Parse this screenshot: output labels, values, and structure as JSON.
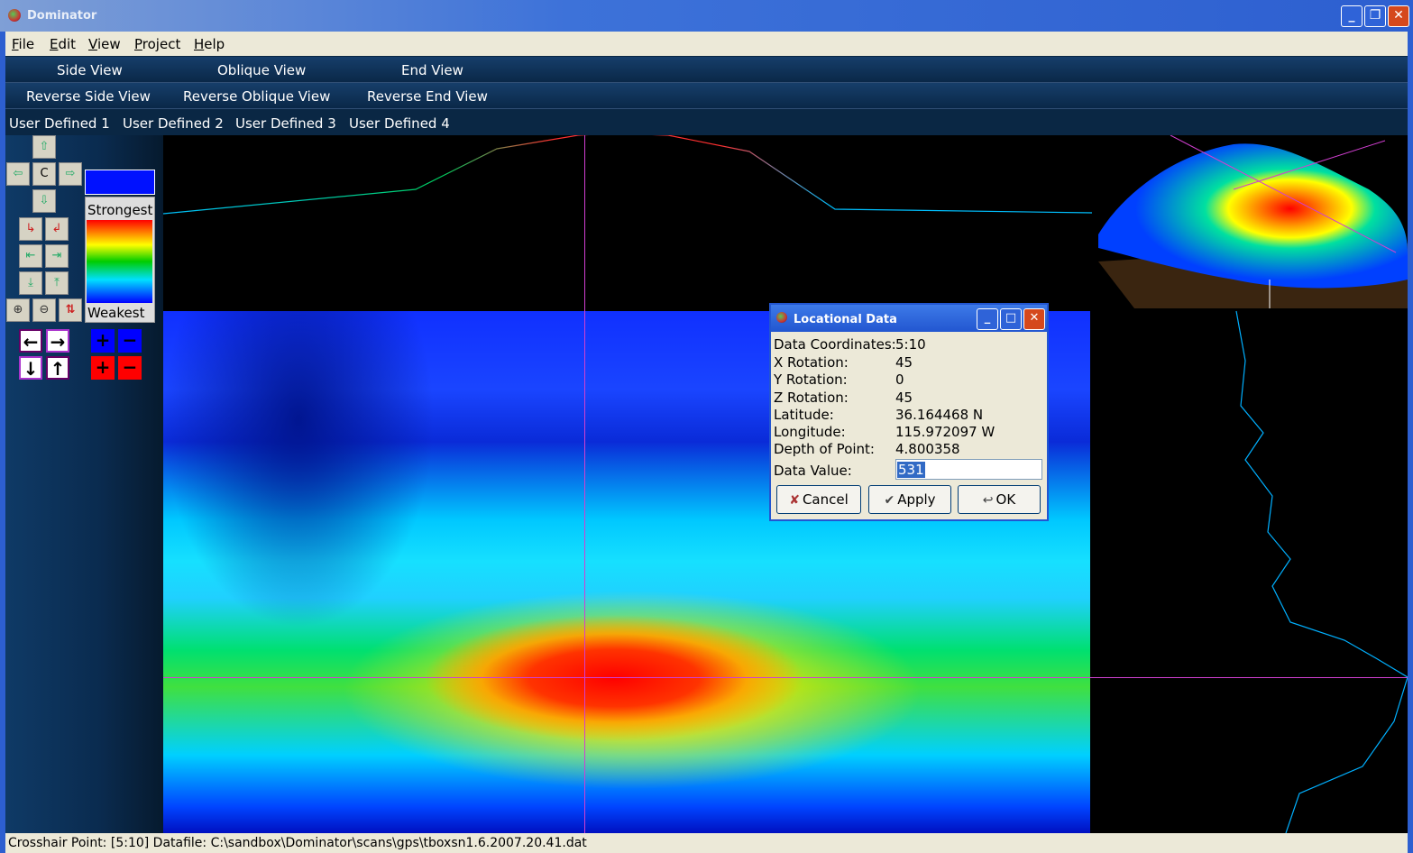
{
  "window": {
    "title": "Dominator"
  },
  "menu": [
    "File",
    "Edit",
    "View",
    "Project",
    "Help"
  ],
  "views_row1": [
    "Side View",
    "Oblique View",
    "End View"
  ],
  "views_row2": [
    "Reverse Side View",
    "Reverse Oblique View",
    "Reverse End View"
  ],
  "user_defined": [
    "User Defined 1",
    "User Defined 2",
    "User Defined 3",
    "User Defined 4"
  ],
  "nav": {
    "center_label": "C"
  },
  "legend": {
    "top_label": "Strongest",
    "bottom_label": "Weakest",
    "colors": [
      "#ff0000",
      "#ff8000",
      "#ffff00",
      "#00cc00",
      "#00e0ff",
      "#0000ff"
    ]
  },
  "dialog": {
    "title": "Locational Data",
    "data_coordinates_label": "Data Coordinates:",
    "data_coordinates": "5:10",
    "x_rotation_label": "X Rotation:",
    "x_rotation": "45",
    "y_rotation_label": "Y Rotation:",
    "y_rotation": "0",
    "z_rotation_label": "Z Rotation:",
    "z_rotation": "45",
    "latitude_label": "Latitude:",
    "latitude": "36.164468 N",
    "longitude_label": "Longitude:",
    "longitude": "115.972097 W",
    "depth_label": "Depth of Point:",
    "depth": "4.800358",
    "data_value_label": "Data Value:",
    "data_value": "531",
    "cancel_label": "Cancel",
    "apply_label": "Apply",
    "ok_label": "OK"
  },
  "status": {
    "text": "Crosshair Point: [5:10]  Datafile: C:\\sandbox\\Dominator\\scans\\gps\\tboxsn1.6.2007.20.41.dat"
  },
  "colors": {
    "crosshair": "#d13fd1",
    "titlebar": "#2d5fd0",
    "panel": "#0a2744"
  }
}
